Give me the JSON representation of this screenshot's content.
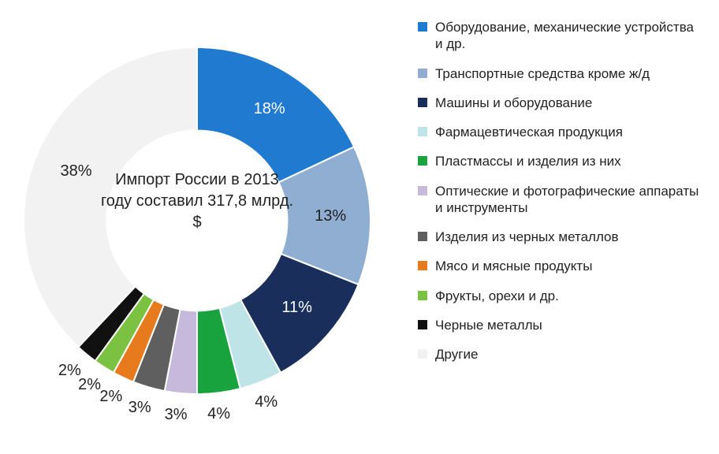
{
  "chart": {
    "type": "pie",
    "inner_radius_ratio": 0.52,
    "background_color": "#ffffff",
    "center_text": "Импорт России в 2013 году составил 317,8 млрд. $",
    "center_font_size": 20,
    "label_font_size": 20,
    "legend_font_size": 17,
    "start_angle_deg": -90,
    "slices": [
      {
        "label": "Оборудование, механические устройства и др.",
        "value": 18,
        "color": "#1f7ad0",
        "pct_text": "18%",
        "pct_color": "#ffffff"
      },
      {
        "label": "Транспортные средства кроме ж/д",
        "value": 13,
        "color": "#8faed2",
        "pct_text": "13%",
        "pct_color": "#222222"
      },
      {
        "label": "Машины и оборудование",
        "value": 11,
        "color": "#1a2e5c",
        "pct_text": "11%",
        "pct_color": "#ffffff"
      },
      {
        "label": "Фармацевтическая продукция",
        "value": 4,
        "color": "#bfe4e8",
        "pct_text": "4%",
        "pct_color": "#222222"
      },
      {
        "label": "Пластмассы и изделия из них",
        "value": 4,
        "color": "#19a33e",
        "pct_text": "4%",
        "pct_color": "#222222"
      },
      {
        "label": "Оптические и фотографические аппараты и инструменты",
        "value": 3,
        "color": "#c7b9db",
        "pct_text": "3%",
        "pct_color": "#222222"
      },
      {
        "label": "Изделия из черных металлов",
        "value": 3,
        "color": "#5f5f5f",
        "pct_text": "3%",
        "pct_color": "#222222"
      },
      {
        "label": "Мясо и мясные продукты",
        "value": 2,
        "color": "#e87a1e",
        "pct_text": "2%",
        "pct_color": "#222222"
      },
      {
        "label": "Фрукты, орехи и др.",
        "value": 2,
        "color": "#7cc242",
        "pct_text": "2%",
        "pct_color": "#222222"
      },
      {
        "label": "Черные металлы",
        "value": 2,
        "color": "#111111",
        "pct_text": "2%",
        "pct_color": "#222222"
      },
      {
        "label": "Другие",
        "value": 38,
        "color": "#f2f2f2",
        "pct_text": "38%",
        "pct_color": "#222222"
      }
    ]
  }
}
